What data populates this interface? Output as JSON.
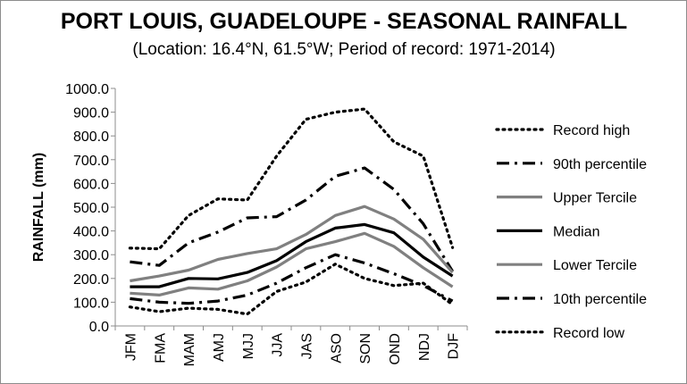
{
  "chart_data": {
    "type": "line",
    "title": "PORT LOUIS, GUADELOUPE - SEASONAL RAINFALL",
    "subtitle": "(Location: 16.4°N, 61.5°W; Period of record: 1971-2014)",
    "xlabel": "",
    "ylabel": "RAINFALL (mm)",
    "ylim": [
      0,
      1000
    ],
    "yticks": [
      "0.0",
      "100.0",
      "200.0",
      "300.0",
      "400.0",
      "500.0",
      "600.0",
      "700.0",
      "800.0",
      "900.0",
      "1000.0"
    ],
    "categories": [
      "JFM",
      "FMA",
      "MAM",
      "AMJ",
      "MJJ",
      "JJA",
      "JAS",
      "ASO",
      "SON",
      "OND",
      "NDJ",
      "DJF"
    ],
    "grid": false,
    "legend_position": "right",
    "series": [
      {
        "name": "Record high",
        "color": "#000000",
        "style": "dotted",
        "values": [
          328,
          325,
          465,
          535,
          530,
          715,
          870,
          900,
          913,
          775,
          715,
          330
        ]
      },
      {
        "name": "90th percentile",
        "color": "#000000",
        "style": "dashdot",
        "values": [
          270,
          255,
          350,
          395,
          455,
          460,
          530,
          630,
          665,
          575,
          430,
          230
        ]
      },
      {
        "name": "Upper Tercile",
        "color": "#808080",
        "style": "solid",
        "values": [
          190,
          210,
          235,
          280,
          305,
          325,
          385,
          465,
          503,
          450,
          365,
          225
        ]
      },
      {
        "name": "Median",
        "color": "#000000",
        "style": "solid",
        "values": [
          165,
          165,
          200,
          198,
          225,
          275,
          355,
          412,
          427,
          392,
          290,
          210
        ]
      },
      {
        "name": "Lower Tercile",
        "color": "#808080",
        "style": "solid",
        "values": [
          138,
          130,
          160,
          155,
          190,
          248,
          325,
          355,
          390,
          335,
          245,
          165
        ]
      },
      {
        "name": "10th percentile",
        "color": "#000000",
        "style": "dashdot",
        "values": [
          115,
          100,
          95,
          105,
          130,
          180,
          245,
          300,
          265,
          220,
          170,
          105
        ]
      },
      {
        "name": "Record low",
        "color": "#000000",
        "style": "dotted",
        "values": [
          80,
          60,
          75,
          70,
          50,
          145,
          185,
          260,
          200,
          170,
          180,
          90
        ]
      }
    ]
  }
}
